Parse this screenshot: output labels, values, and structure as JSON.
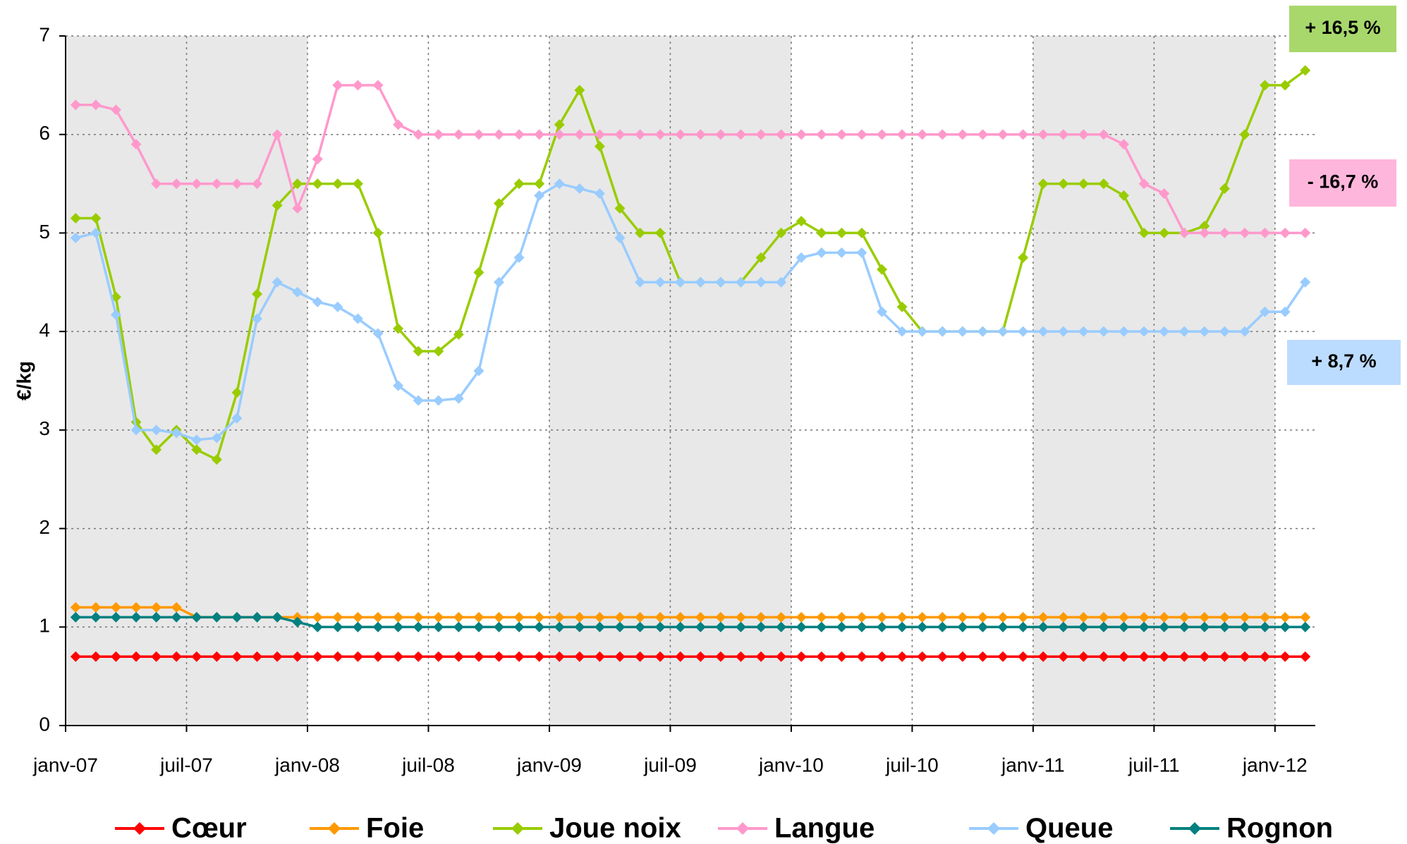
{
  "chart_data": {
    "type": "line",
    "y_label": "€/kg",
    "categories": [
      "janv-07",
      null,
      null,
      null,
      null,
      null,
      "juil-07",
      null,
      null,
      null,
      null,
      null,
      "janv-08",
      null,
      null,
      null,
      null,
      null,
      "juil-08",
      null,
      null,
      null,
      null,
      null,
      "janv-09",
      null,
      null,
      null,
      null,
      null,
      "juil-09",
      null,
      null,
      null,
      null,
      null,
      "janv-10",
      null,
      null,
      null,
      null,
      null,
      "juil-10",
      null,
      null,
      null,
      null,
      null,
      "janv-11",
      null,
      null,
      null,
      null,
      null,
      "juil-11",
      null,
      null,
      null,
      null,
      null,
      "janv-12",
      null
    ],
    "ylim": [
      0,
      7
    ],
    "yticks": [
      0,
      1,
      2,
      3,
      4,
      5,
      6,
      7
    ],
    "grid": true,
    "legend": "bottom",
    "series": [
      {
        "name": "Cœur",
        "color": "#ff0000",
        "values": [
          0.7,
          0.7,
          0.7,
          0.7,
          0.7,
          0.7,
          0.7,
          0.7,
          0.7,
          0.7,
          0.7,
          0.7,
          0.7,
          0.7,
          0.7,
          0.7,
          0.7,
          0.7,
          0.7,
          0.7,
          0.7,
          0.7,
          0.7,
          0.7,
          0.7,
          0.7,
          0.7,
          0.7,
          0.7,
          0.7,
          0.7,
          0.7,
          0.7,
          0.7,
          0.7,
          0.7,
          0.7,
          0.7,
          0.7,
          0.7,
          0.7,
          0.7,
          0.7,
          0.7,
          0.7,
          0.7,
          0.7,
          0.7,
          0.7,
          0.7,
          0.7,
          0.7,
          0.7,
          0.7,
          0.7,
          0.7,
          0.7,
          0.7,
          0.7,
          0.7,
          0.7,
          0.7
        ]
      },
      {
        "name": "Foie",
        "color": "#ff9900",
        "values": [
          1.2,
          1.2,
          1.2,
          1.2,
          1.2,
          1.2,
          1.1,
          1.1,
          1.1,
          1.1,
          1.1,
          1.1,
          1.1,
          1.1,
          1.1,
          1.1,
          1.1,
          1.1,
          1.1,
          1.1,
          1.1,
          1.1,
          1.1,
          1.1,
          1.1,
          1.1,
          1.1,
          1.1,
          1.1,
          1.1,
          1.1,
          1.1,
          1.1,
          1.1,
          1.1,
          1.1,
          1.1,
          1.1,
          1.1,
          1.1,
          1.1,
          1.1,
          1.1,
          1.1,
          1.1,
          1.1,
          1.1,
          1.1,
          1.1,
          1.1,
          1.1,
          1.1,
          1.1,
          1.1,
          1.1,
          1.1,
          1.1,
          1.1,
          1.1,
          1.1,
          1.1,
          1.1
        ]
      },
      {
        "name": "Joue noix",
        "color": "#99cc00",
        "values": [
          5.15,
          5.15,
          4.35,
          3.08,
          2.8,
          3.0,
          2.8,
          2.7,
          3.38,
          4.38,
          5.28,
          5.5,
          5.5,
          5.5,
          5.5,
          5.0,
          4.03,
          3.8,
          3.8,
          3.97,
          4.6,
          5.3,
          5.5,
          5.5,
          6.1,
          6.45,
          5.88,
          5.25,
          5.0,
          5.0,
          4.5,
          4.5,
          4.5,
          4.5,
          4.75,
          5.0,
          5.12,
          5.0,
          5.0,
          5.0,
          4.63,
          4.25,
          4.0,
          4.0,
          4.0,
          4.0,
          4.0,
          4.75,
          5.5,
          5.5,
          5.5,
          5.5,
          5.38,
          5.0,
          5.0,
          5.0,
          5.07,
          5.45,
          6.0,
          6.5,
          6.5,
          6.65
        ]
      },
      {
        "name": "Langue",
        "color": "#ff99cc",
        "values": [
          6.3,
          6.3,
          6.25,
          5.9,
          5.5,
          5.5,
          5.5,
          5.5,
          5.5,
          5.5,
          6.0,
          5.25,
          5.75,
          6.5,
          6.5,
          6.5,
          6.1,
          6.0,
          6.0,
          6.0,
          6.0,
          6.0,
          6.0,
          6.0,
          6.0,
          6.0,
          6.0,
          6.0,
          6.0,
          6.0,
          6.0,
          6.0,
          6.0,
          6.0,
          6.0,
          6.0,
          6.0,
          6.0,
          6.0,
          6.0,
          6.0,
          6.0,
          6.0,
          6.0,
          6.0,
          6.0,
          6.0,
          6.0,
          6.0,
          6.0,
          6.0,
          6.0,
          5.9,
          5.5,
          5.4,
          5.0,
          5.0,
          5.0,
          5.0,
          5.0,
          5.0,
          5.0
        ]
      },
      {
        "name": "Queue",
        "color": "#99ccff",
        "values": [
          4.95,
          5.0,
          4.17,
          3.0,
          3.0,
          2.97,
          2.9,
          2.92,
          3.12,
          4.13,
          4.5,
          4.4,
          4.3,
          4.25,
          4.13,
          3.98,
          3.45,
          3.3,
          3.3,
          3.32,
          3.6,
          4.5,
          4.75,
          5.38,
          5.5,
          5.45,
          5.4,
          4.95,
          4.5,
          4.5,
          4.5,
          4.5,
          4.5,
          4.5,
          4.5,
          4.5,
          4.75,
          4.8,
          4.8,
          4.8,
          4.2,
          4.0,
          4.0,
          4.0,
          4.0,
          4.0,
          4.0,
          4.0,
          4.0,
          4.0,
          4.0,
          4.0,
          4.0,
          4.0,
          4.0,
          4.0,
          4.0,
          4.0,
          4.0,
          4.2,
          4.2,
          4.5
        ]
      },
      {
        "name": "Rognon",
        "color": "#008080",
        "values": [
          1.1,
          1.1,
          1.1,
          1.1,
          1.1,
          1.1,
          1.1,
          1.1,
          1.1,
          1.1,
          1.1,
          1.05,
          1.0,
          1.0,
          1.0,
          1.0,
          1.0,
          1.0,
          1.0,
          1.0,
          1.0,
          1.0,
          1.0,
          1.0,
          1.0,
          1.0,
          1.0,
          1.0,
          1.0,
          1.0,
          1.0,
          1.0,
          1.0,
          1.0,
          1.0,
          1.0,
          1.0,
          1.0,
          1.0,
          1.0,
          1.0,
          1.0,
          1.0,
          1.0,
          1.0,
          1.0,
          1.0,
          1.0,
          1.0,
          1.0,
          1.0,
          1.0,
          1.0,
          1.0,
          1.0,
          1.0,
          1.0,
          1.0,
          1.0,
          1.0,
          1.0,
          1.0
        ]
      }
    ],
    "annotations": [
      {
        "text": "+ 16,5 %",
        "color": "#a8d86c"
      },
      {
        "text": "- 16,7 %",
        "color": "#ffb6dc"
      },
      {
        "text": "+ 8,7 %",
        "color": "#bcdcff"
      }
    ]
  }
}
